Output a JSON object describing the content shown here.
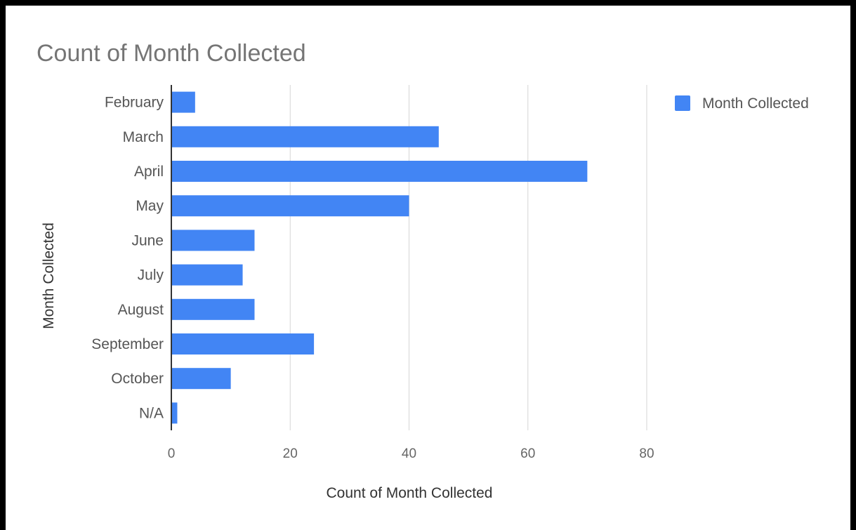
{
  "chart_data": {
    "type": "bar",
    "orientation": "horizontal",
    "title": "Count of Month Collected",
    "xlabel": "Count of Month Collected",
    "ylabel": "Month Collected",
    "categories": [
      "February",
      "March",
      "April",
      "May",
      "June",
      "July",
      "August",
      "September",
      "October",
      "N/A"
    ],
    "series": [
      {
        "name": "Month Collected",
        "values": [
          4,
          45,
          70,
          40,
          14,
          12,
          14,
          24,
          10,
          1
        ],
        "color": "#4285f4"
      }
    ],
    "xlim": [
      0,
      80
    ],
    "xticks": [
      0,
      20,
      40,
      60,
      80
    ],
    "grid": true,
    "legend": "top-right"
  }
}
